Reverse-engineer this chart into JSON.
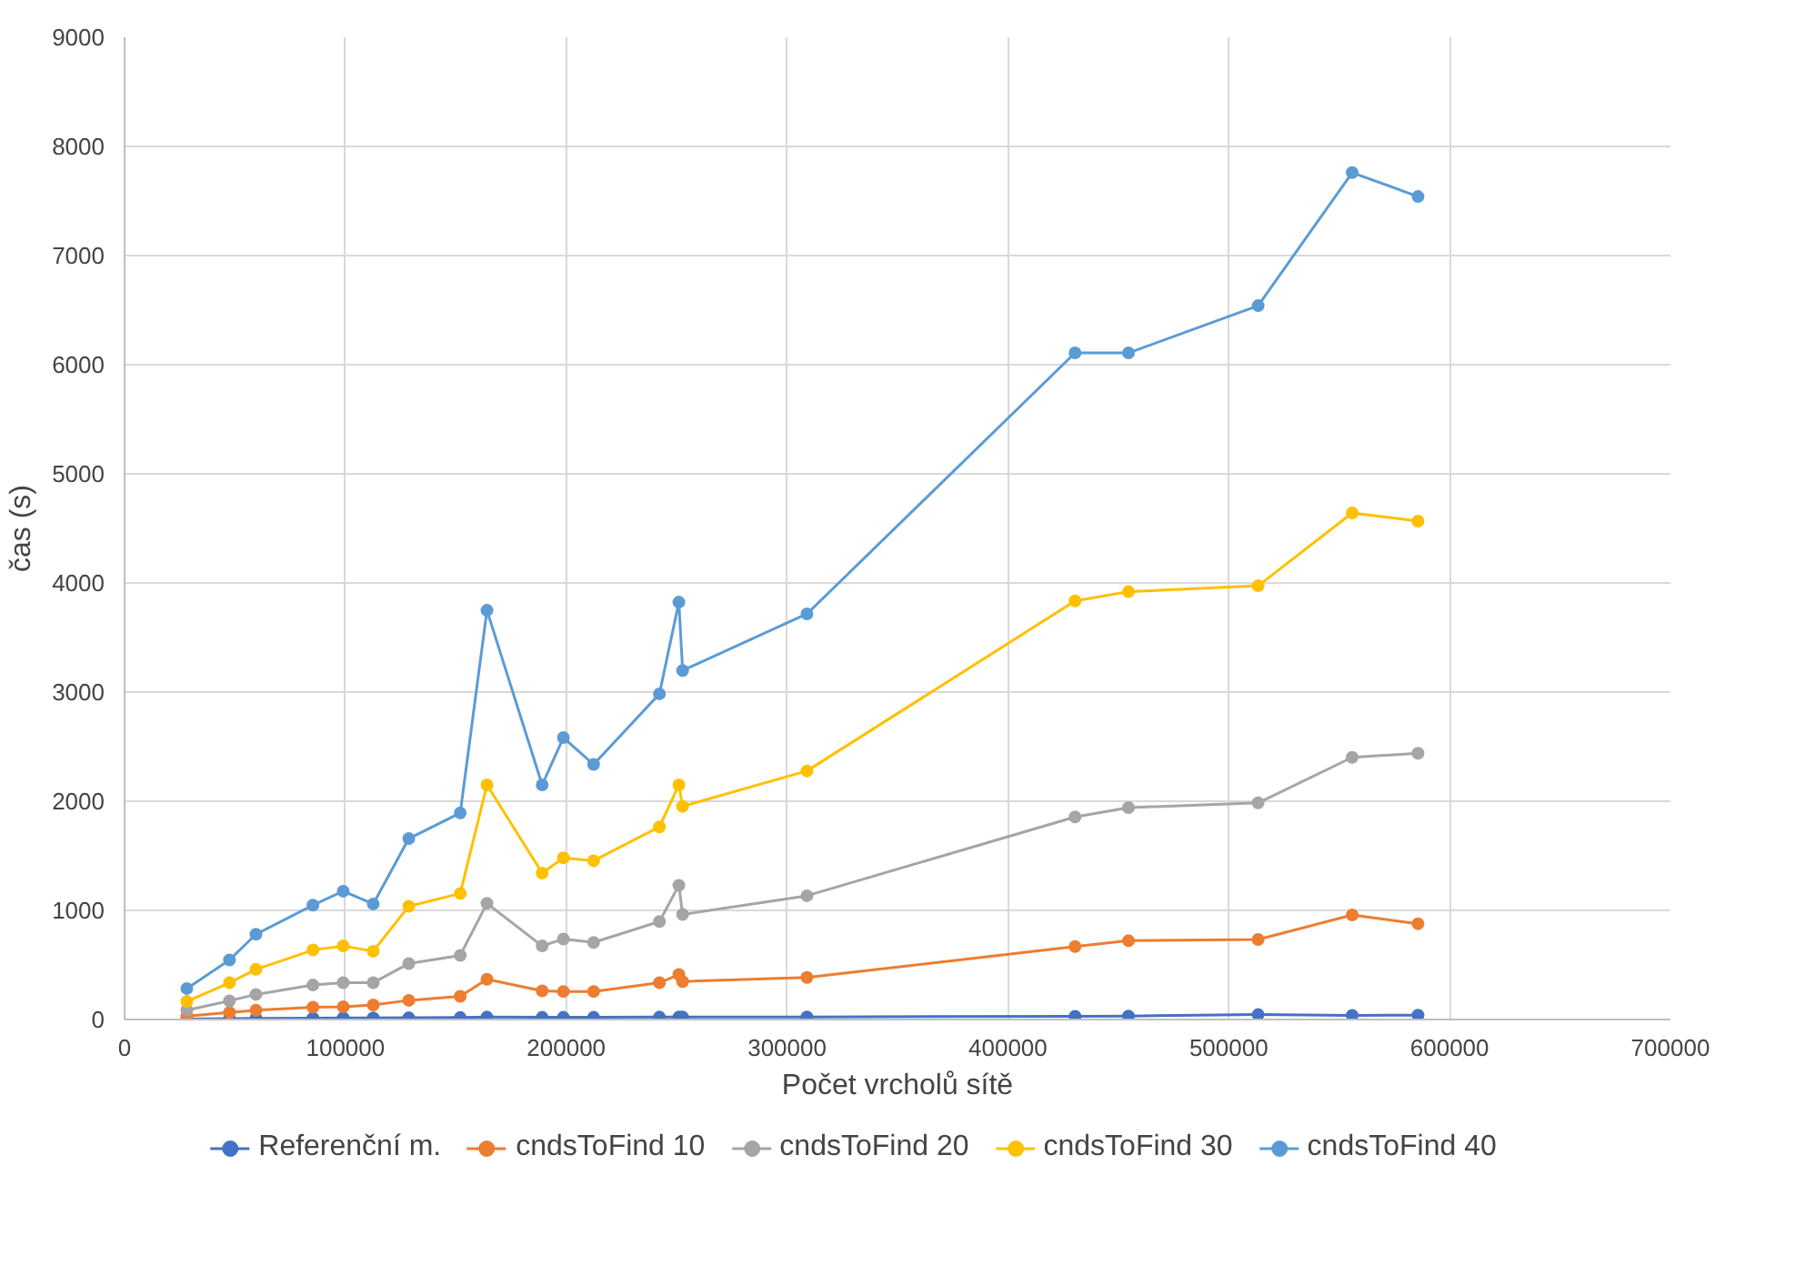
{
  "chart_data": {
    "type": "line",
    "xlabel": "Počet vrcholů sítě",
    "ylabel": "čas (s)",
    "x": [
      28200,
      47500,
      59500,
      85300,
      99000,
      112600,
      128700,
      152000,
      164100,
      189100,
      198700,
      212400,
      242200,
      251000,
      252700,
      309000,
      430400,
      454600,
      513300,
      555900,
      585700
    ],
    "series": [
      {
        "name": "Referenční m.",
        "color": "#4472c4",
        "values": [
          5,
          8,
          10,
          12,
          14,
          15,
          16,
          18,
          22,
          20,
          20,
          20,
          22,
          22,
          22,
          23,
          30,
          32,
          45,
          38,
          40
        ]
      },
      {
        "name": "cndsToFind 10",
        "color": "#ed7d31",
        "values": [
          32,
          64,
          85,
          112,
          117,
          133,
          176,
          213,
          369,
          262,
          257,
          257,
          337,
          412,
          348,
          385,
          669,
          722,
          733,
          958,
          878
        ]
      },
      {
        "name": "cndsToFind 20",
        "color": "#a5a5a5",
        "values": [
          85,
          171,
          230,
          316,
          337,
          337,
          513,
          588,
          1064,
          674,
          738,
          706,
          898,
          1230,
          962,
          1134,
          1856,
          1942,
          1985,
          2402,
          2439
        ]
      },
      {
        "name": "cndsToFind 30",
        "color": "#ffc000",
        "values": [
          166,
          337,
          460,
          637,
          674,
          626,
          1038,
          1155,
          2150,
          1342,
          1481,
          1455,
          1765,
          2150,
          1953,
          2278,
          3835,
          3920,
          3974,
          4642,
          4567
        ]
      },
      {
        "name": "cndsToFind 40",
        "color": "#5b9bd5",
        "values": [
          284,
          546,
          781,
          1048,
          1176,
          1059,
          1658,
          1893,
          3749,
          2150,
          2583,
          2337,
          2984,
          3824,
          3198,
          3717,
          6108,
          6108,
          6541,
          7760,
          7541
        ]
      }
    ],
    "xlim": [
      0,
      700000
    ],
    "xticks": [
      0,
      100000,
      200000,
      300000,
      400000,
      500000,
      600000,
      700000
    ],
    "ylim": [
      0,
      9000
    ],
    "yticks": [
      0,
      1000,
      2000,
      3000,
      4000,
      5000,
      6000,
      7000,
      8000,
      9000
    ],
    "grid": true,
    "legend": "bottom",
    "marker": "circle",
    "line_style": "solid"
  }
}
